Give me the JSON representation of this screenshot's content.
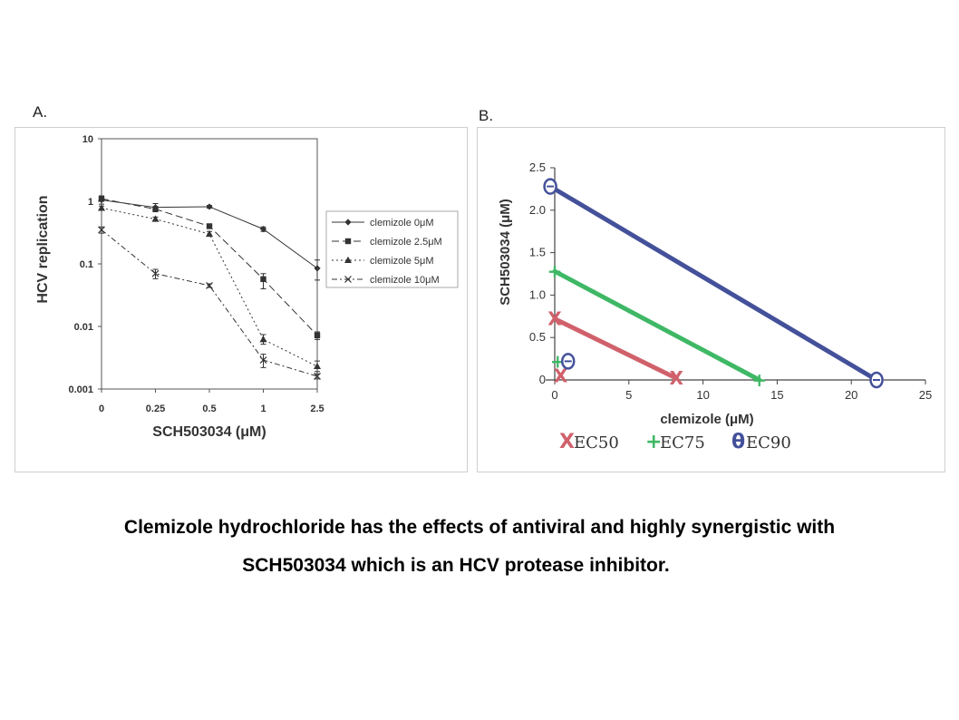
{
  "panels": {
    "a_label": "A.",
    "b_label": "B."
  },
  "caption": {
    "line1": "Clemizole hydrochloride has the effects of antiviral and highly synergistic with",
    "line2": "SCH503034 which is an HCV protease inhibitor."
  },
  "chart_data": [
    {
      "type": "line",
      "panel": "A",
      "xlabel": "SCH503034 (μM)",
      "ylabel": "HCV replication",
      "categories": [
        "0",
        "0.25",
        "0.5",
        "1",
        "2.5"
      ],
      "yscale": "log",
      "ylim": [
        0.001,
        10
      ],
      "yticks": [
        {
          "value": 10,
          "label": "10"
        },
        {
          "value": 1,
          "label": "1"
        },
        {
          "value": 0.1,
          "label": "0.1"
        },
        {
          "value": 0.01,
          "label": "0.01"
        },
        {
          "value": 0.001,
          "label": "0.001"
        }
      ],
      "legend_position": "right",
      "series": [
        {
          "name": "clemizole 0μM",
          "marker": "diamond",
          "dash": "",
          "values": [
            1.05,
            0.8,
            0.82,
            0.36,
            0.085
          ],
          "err_low": [
            0.9,
            0.7,
            0.78,
            0.33,
            0.055
          ],
          "err_high": [
            1.2,
            0.92,
            0.86,
            0.39,
            0.115
          ]
        },
        {
          "name": "clemizole 2.5μM",
          "marker": "square",
          "dash": "8,4",
          "values": [
            1.1,
            0.75,
            0.4,
            0.057,
            0.0072
          ],
          "err_low": [
            1.0,
            0.68,
            0.37,
            0.04,
            0.0062
          ],
          "err_high": [
            1.22,
            0.82,
            0.43,
            0.07,
            0.0082
          ]
        },
        {
          "name": "clemizole 5μM",
          "marker": "triangle",
          "dash": "2,3",
          "values": [
            0.78,
            0.52,
            0.3,
            0.0062,
            0.0023
          ],
          "err_low": [
            0.72,
            0.48,
            0.28,
            0.0052,
            0.0019
          ],
          "err_high": [
            0.84,
            0.56,
            0.33,
            0.0074,
            0.0028
          ]
        },
        {
          "name": "clemizole 10μM",
          "marker": "x",
          "dash": "6,3,2,3",
          "values": [
            0.35,
            0.07,
            0.045,
            0.0029,
            0.0016
          ],
          "err_low": [
            0.31,
            0.058,
            0.042,
            0.0022,
            0.00145
          ],
          "err_high": [
            0.39,
            0.082,
            0.048,
            0.0036,
            0.00175
          ]
        }
      ]
    },
    {
      "type": "line",
      "panel": "B",
      "xlabel": "clemizole (μM)",
      "ylabel": "SCH503034 (μM)",
      "xlim": [
        0,
        25
      ],
      "ylim": [
        0,
        2.5
      ],
      "xticks": [
        {
          "value": 0,
          "label": "0"
        },
        {
          "value": 5,
          "label": "5"
        },
        {
          "value": 10,
          "label": "10"
        },
        {
          "value": 15,
          "label": "15"
        },
        {
          "value": 20,
          "label": "20"
        },
        {
          "value": 25,
          "label": "25"
        }
      ],
      "yticks": [
        {
          "value": 0,
          "label": "0"
        },
        {
          "value": 0.5,
          "label": "0.5"
        },
        {
          "value": 1,
          "label": "1.0"
        },
        {
          "value": 1.5,
          "label": "1.5"
        },
        {
          "value": 2,
          "label": "2.0"
        },
        {
          "value": 2.5,
          "label": "2.5"
        }
      ],
      "series": [
        {
          "name": "EC50",
          "color": "#d0616b",
          "marker_text": "X",
          "line": [
            [
              0,
              0.72
            ],
            [
              8.2,
              0.02
            ]
          ],
          "markers": [
            [
              0,
              0.72
            ],
            [
              8.2,
              0.02
            ],
            [
              0.4,
              0.05
            ]
          ]
        },
        {
          "name": "EC75",
          "color": "#3fb866",
          "marker_text": "+",
          "line": [
            [
              0,
              1.28
            ],
            [
              13.8,
              0.0
            ]
          ],
          "markers": [
            [
              0,
              1.28
            ],
            [
              13.8,
              0.0
            ],
            [
              0.2,
              0.22
            ]
          ]
        },
        {
          "name": "EC90",
          "color": "#44519a",
          "marker_text": "θ",
          "line": [
            [
              -0.3,
              2.28
            ],
            [
              21.7,
              0.0
            ]
          ],
          "markers": [
            [
              -0.3,
              2.28
            ],
            [
              21.7,
              0.0
            ],
            [
              0.9,
              0.22
            ]
          ]
        }
      ],
      "legend": [
        {
          "symbol": "X",
          "label": "EC50",
          "color": "#d0616b"
        },
        {
          "symbol": "+",
          "label": "EC75",
          "color": "#3fb866"
        },
        {
          "symbol": "θ",
          "label": "EC90",
          "color": "#44519a"
        }
      ]
    }
  ]
}
